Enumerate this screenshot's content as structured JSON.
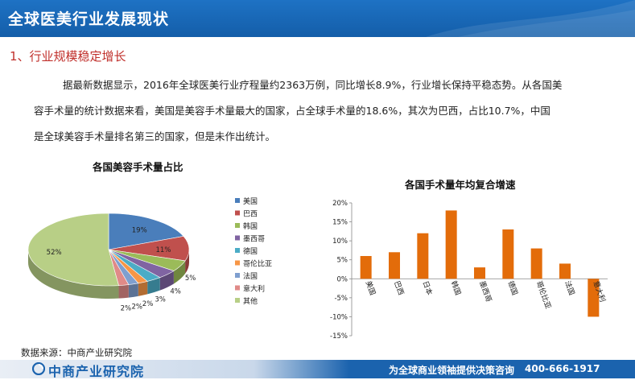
{
  "header": {
    "title": "全球医美行业发展现状"
  },
  "section": {
    "title": "1、行业规模稳定增长"
  },
  "paragraph": {
    "line1": "据最新数据显示，2016年全球医美行业疗程量约2363万例，同比增长8.9%，行业增长保持平稳态势。从各国美",
    "line2": "容手术量的统计数据来看，美国是美容手术量最大的国家，占全球手术量的18.6%，其次为巴西，占比10.7%，中国",
    "line3": "是全球美容手术量排名第三的国家，但是未作出统计。"
  },
  "chart_data": [
    {
      "type": "pie",
      "title": "各国美容手术量占比",
      "labels": [
        "美国",
        "巴西",
        "韩国",
        "墨西哥",
        "德国",
        "哥伦比亚",
        "法国",
        "意大利",
        "其他"
      ],
      "values": [
        19,
        11,
        5,
        4,
        3,
        2,
        2,
        2,
        52
      ],
      "data_labels": [
        "19%",
        "11%",
        "5%",
        "4%",
        "3%",
        "2%",
        "2%",
        "2%",
        "52%"
      ],
      "colors": [
        "#4a7ebb",
        "#c0504d",
        "#9bbb59",
        "#8064a2",
        "#4bacc6",
        "#f79646",
        "#7f9fcf",
        "#e08a88",
        "#b8cf86"
      ],
      "legend": "right"
    },
    {
      "type": "bar",
      "title": "各国手术量年均复合增速",
      "categories": [
        "美国",
        "巴西",
        "日本",
        "韩国",
        "墨西哥",
        "德国",
        "哥伦比亚",
        "法国",
        "意大利"
      ],
      "values": [
        6,
        7,
        12,
        18,
        3,
        13,
        8,
        4,
        -10
      ],
      "ylim": [
        -15,
        20
      ],
      "yticks": [
        "20%",
        "15%",
        "10%",
        "5%",
        "0%",
        "-5%",
        "-10%",
        "-15%"
      ],
      "color": "#e36c0a"
    }
  ],
  "source": {
    "text": "数据来源：中商产业研究院"
  },
  "footer": {
    "logo": "中商产业研究院",
    "slogan": "为全球商业领袖提供决策咨询",
    "phone": "400-666-1917"
  },
  "colors": {
    "header": "#1b63ae",
    "accent": "#c0302c"
  }
}
